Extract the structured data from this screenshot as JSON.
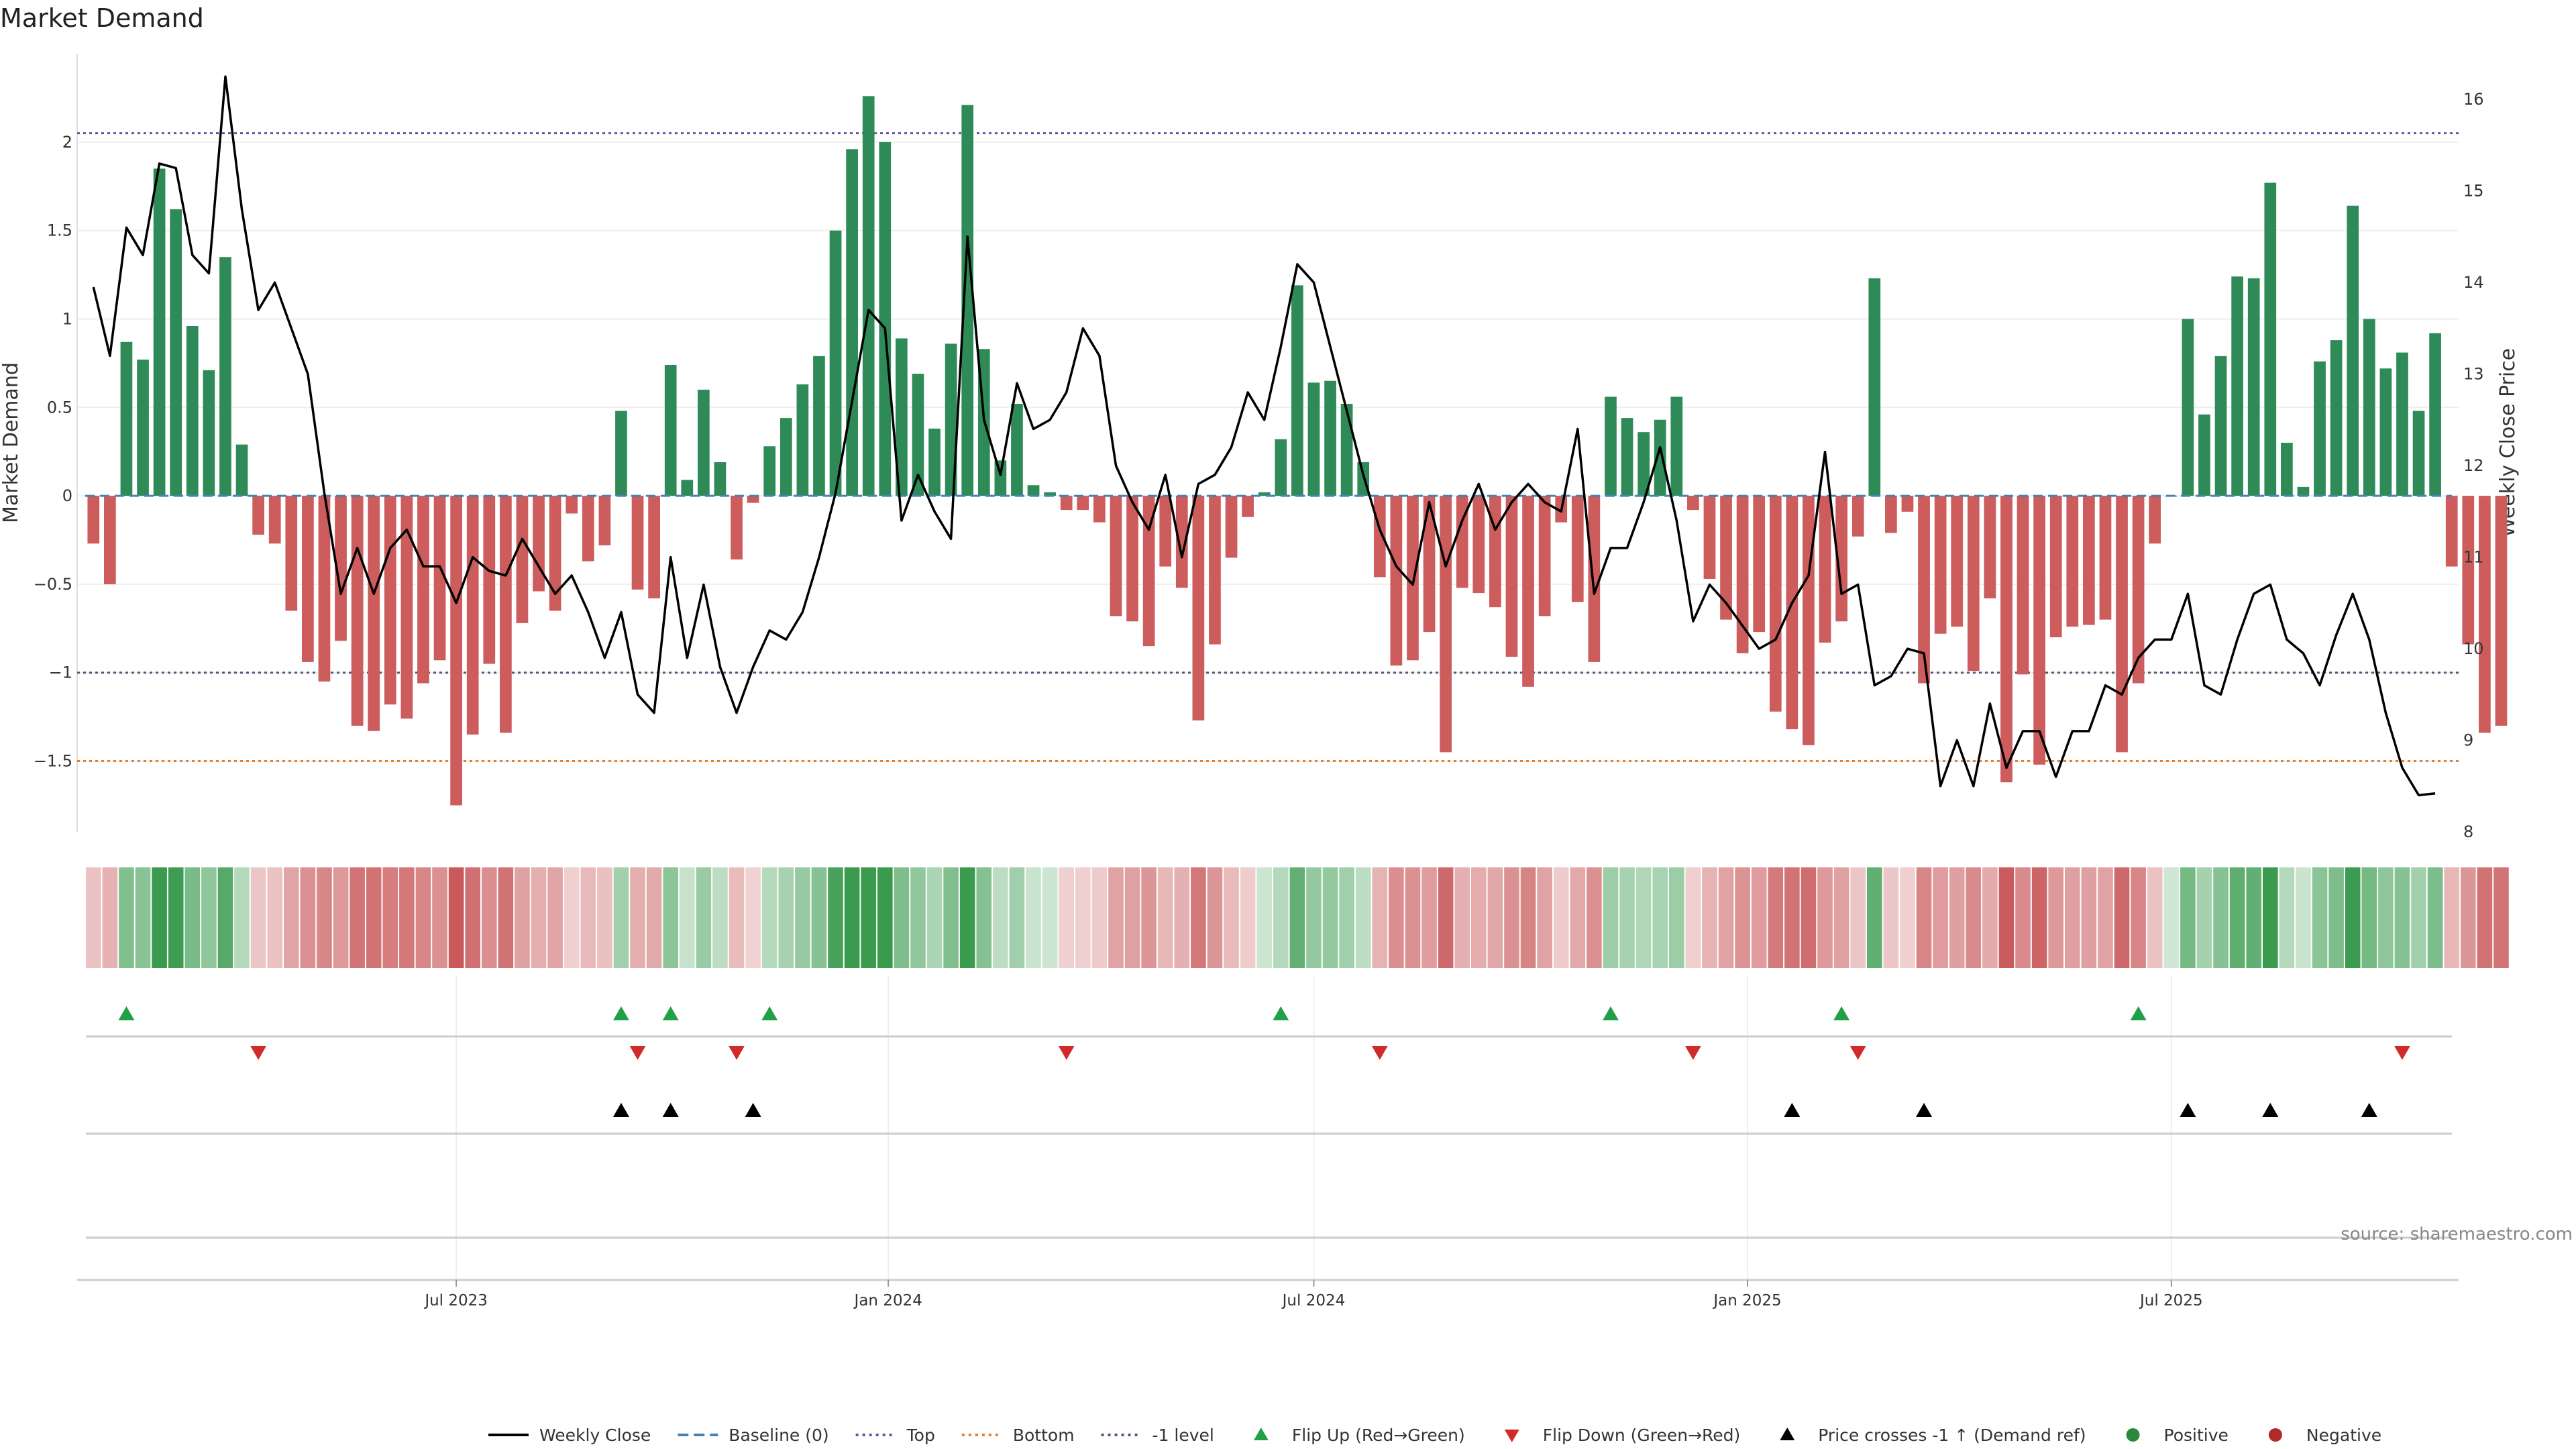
{
  "chart_data": {
    "type": "bar",
    "title": "Market Demand",
    "ylabel_left": "Market Demand",
    "ylabel_right": "Weekly Close Price",
    "source": "source: sharemaestro.com",
    "ylim_left": [
      -1.9,
      2.5
    ],
    "ylim_right": [
      8,
      16.5
    ],
    "yticks_left": [
      2,
      1.5,
      1,
      0.5,
      0,
      -0.5,
      -1,
      -1.5
    ],
    "ytick_labels_left": [
      "2",
      "1.5",
      "1",
      "0.5",
      "0",
      "−0.5",
      "−1",
      "−1.5"
    ],
    "yticks_right": [
      8,
      9,
      10,
      11,
      12,
      13,
      14,
      15,
      16
    ],
    "ytick_labels_right": [
      "8",
      "9",
      "10",
      "11",
      "12",
      "13",
      "14",
      "15",
      "16"
    ],
    "levels": {
      "top": 2.05,
      "bottom": -1.5,
      "minus_one": -1.0
    },
    "x_weeks": 144,
    "x_ticks": [
      {
        "label": "Jul 2023",
        "week": 22
      },
      {
        "label": "Jan 2024",
        "week": 48.2
      },
      {
        "label": "Jul 2024",
        "week": 74
      },
      {
        "label": "Jan 2025",
        "week": 100.3
      },
      {
        "label": "Jul 2025",
        "week": 126
      }
    ],
    "demand": [
      -0.27,
      -0.5,
      0.87,
      0.77,
      1.85,
      1.62,
      0.96,
      0.71,
      1.35,
      0.29,
      -0.22,
      -0.27,
      -0.65,
      -0.94,
      -1.05,
      -0.82,
      -1.3,
      -1.33,
      -1.18,
      -1.26,
      -1.06,
      -0.93,
      -1.75,
      -1.35,
      -0.95,
      -1.34,
      -0.72,
      -0.54,
      -0.65,
      -0.1,
      -0.37,
      -0.28,
      0.48,
      -0.53,
      -0.58,
      0.74,
      0.09,
      0.6,
      0.19,
      -0.36,
      -0.04,
      0.28,
      0.44,
      0.63,
      0.79,
      1.5,
      1.96,
      2.26,
      2.0,
      0.89,
      0.69,
      0.38,
      0.86,
      2.21,
      0.83,
      0.2,
      0.52,
      0.06,
      0.02,
      -0.08,
      -0.08,
      -0.15,
      -0.68,
      -0.71,
      -0.85,
      -0.4,
      -0.52,
      -1.27,
      -0.84,
      -0.35,
      -0.12,
      0.02,
      0.32,
      1.19,
      0.64,
      0.65,
      0.52,
      0.19,
      -0.46,
      -0.96,
      -0.93,
      -0.77,
      -1.45,
      -0.52,
      -0.55,
      -0.63,
      -0.91,
      -1.08,
      -0.68,
      -0.15,
      -0.6,
      -0.94,
      0.56,
      0.44,
      0.36,
      0.43,
      0.56,
      -0.08,
      -0.47,
      -0.7,
      -0.89,
      -0.77,
      -1.22,
      -1.32,
      -1.41,
      -0.83,
      -0.71,
      -0.23,
      1.23,
      -0.21,
      -0.09,
      -1.06,
      -0.78,
      -0.74,
      -0.99,
      -0.58,
      -1.62,
      -1.01,
      -1.52,
      -0.8,
      -0.74,
      -0.73,
      -0.7,
      -1.45,
      -1.06,
      -0.27,
      0.0,
      1.0,
      0.46,
      0.79,
      1.24,
      1.23,
      1.77,
      0.3,
      0.05,
      0.76,
      0.88,
      1.64,
      1.0,
      0.72,
      0.81,
      0.48,
      0.92,
      -0.4,
      -0.84,
      -1.34,
      -1.3
    ],
    "price": [
      13.95,
      13.2,
      14.6,
      14.3,
      15.3,
      15.25,
      14.3,
      14.1,
      16.25,
      14.8,
      13.7,
      14.0,
      13.5,
      13.0,
      11.7,
      10.6,
      11.1,
      10.6,
      11.1,
      11.3,
      10.9,
      10.9,
      10.5,
      11.0,
      10.85,
      10.8,
      11.2,
      10.9,
      10.6,
      10.8,
      10.4,
      9.9,
      10.4,
      9.5,
      9.3,
      11.0,
      9.9,
      10.7,
      9.8,
      9.3,
      9.8,
      10.2,
      10.1,
      10.4,
      11.0,
      11.7,
      12.7,
      13.7,
      13.5,
      11.4,
      11.9,
      11.5,
      11.2,
      14.5,
      12.5,
      11.9,
      12.9,
      12.4,
      12.5,
      12.8,
      13.5,
      13.2,
      12.0,
      11.6,
      11.3,
      11.9,
      11.0,
      11.8,
      11.9,
      12.2,
      12.8,
      12.5,
      13.3,
      14.2,
      14.0,
      13.3,
      12.6,
      11.9,
      11.3,
      10.9,
      10.7,
      11.6,
      10.9,
      11.4,
      11.8,
      11.3,
      11.6,
      11.8,
      11.6,
      11.5,
      12.4,
      10.6,
      11.1,
      11.1,
      11.6,
      12.2,
      11.4,
      10.3,
      10.7,
      10.5,
      10.25,
      10.0,
      10.1,
      10.5,
      10.8,
      12.15,
      10.6,
      10.7,
      9.6,
      9.7,
      10.0,
      9.95,
      8.5,
      9.0,
      8.5,
      9.4,
      8.7,
      9.1,
      9.1,
      8.6,
      9.1,
      9.1,
      9.6,
      9.5,
      9.9,
      10.1,
      10.1,
      10.6,
      9.6,
      9.5,
      10.1,
      10.6,
      10.7,
      10.1,
      9.95,
      9.6,
      10.15,
      10.6,
      10.1,
      9.3,
      8.7,
      8.4,
      8.42
    ],
    "heat_strip": {
      "positive_color": "#3a9b4f",
      "negative_color": "#c9595b"
    },
    "flip_up_weeks": [
      2,
      32,
      35,
      41,
      72,
      92,
      106,
      124
    ],
    "flip_down_weeks": [
      10,
      33,
      39,
      59,
      78,
      97,
      107,
      140
    ],
    "price_cross_weeks": [
      32,
      35,
      40,
      103,
      111,
      127,
      132,
      138
    ],
    "colors": {
      "positive_bar": "#2e8b57",
      "negative_bar": "#cd5c5c",
      "price_line": "#000000",
      "baseline": "#4682b4",
      "top_line": "#5b5b9b",
      "bottom_line": "#e08030",
      "minus_one_line": "#555577",
      "flip_up": "#22a048",
      "flip_down": "#d02a2a",
      "price_cross": "#000000",
      "positive_dot": "#2a8a3a",
      "negative_dot": "#b02a2a"
    },
    "legend": [
      {
        "label": "Weekly Close",
        "kind": "line"
      },
      {
        "label": "Baseline (0)",
        "kind": "dash-blue"
      },
      {
        "label": "Top",
        "kind": "dot-purple"
      },
      {
        "label": "Bottom",
        "kind": "dot-orange"
      },
      {
        "label": "-1 level",
        "kind": "dot-gray"
      },
      {
        "label": "Flip Up (Red→Green)",
        "kind": "tri-up-green"
      },
      {
        "label": "Flip Down (Green→Red)",
        "kind": "tri-down-red"
      },
      {
        "label": "Price crosses -1 ↑ (Demand ref)",
        "kind": "tri-up-black"
      },
      {
        "label": "Positive",
        "kind": "dot-green"
      },
      {
        "label": "Negative",
        "kind": "dot-red"
      }
    ]
  }
}
